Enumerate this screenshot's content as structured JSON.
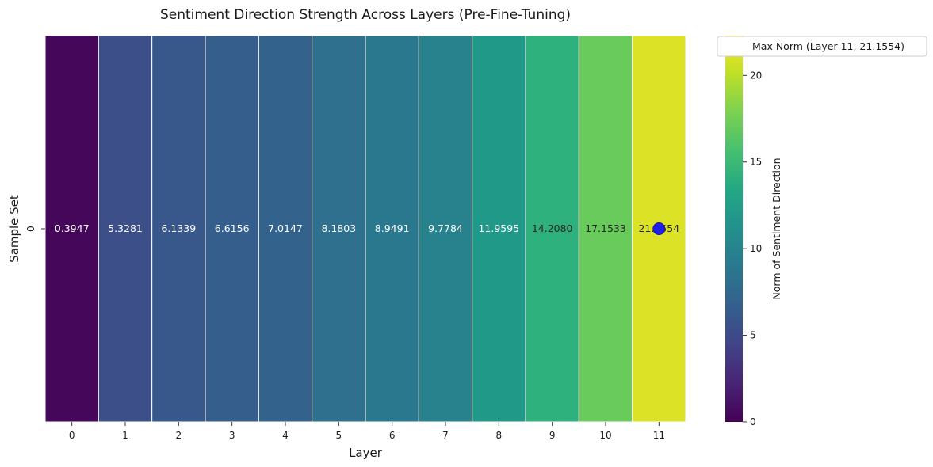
{
  "chart_data": {
    "type": "heatmap",
    "title": "Sentiment Direction Strength Across Layers (Pre-Fine-Tuning)",
    "xlabel": "Layer",
    "ylabel": "Sample Set",
    "x_categories": [
      "0",
      "1",
      "2",
      "3",
      "4",
      "5",
      "6",
      "7",
      "8",
      "9",
      "10",
      "11"
    ],
    "y_categories": [
      "0"
    ],
    "values": [
      [
        0.3947,
        5.3281,
        6.1339,
        6.6156,
        7.0147,
        8.1803,
        8.9491,
        9.7784,
        11.9595,
        14.208,
        17.1533,
        21.1554
      ]
    ],
    "cell_labels": [
      "0.3947",
      "5.3281",
      "6.1339",
      "6.6156",
      "7.0147",
      "8.1803",
      "8.9491",
      "9.7784",
      "11.9595",
      "14.2080",
      "17.1533",
      "21.1554"
    ],
    "colorscale": "viridis",
    "vmin": 0,
    "vmax": 22.3,
    "colorbar": {
      "label": "Norm of Sentiment Direction",
      "ticks": [
        0,
        5,
        10,
        15,
        20
      ],
      "tick_labels": [
        "0",
        "5",
        "10",
        "15",
        "20"
      ]
    },
    "marker": {
      "layer": 11,
      "value": 21.1554,
      "color": "#1f1fe6"
    },
    "legend": {
      "text": "Max Norm (Layer 11, 21.1554)",
      "placement": "upper-right-outside"
    }
  }
}
